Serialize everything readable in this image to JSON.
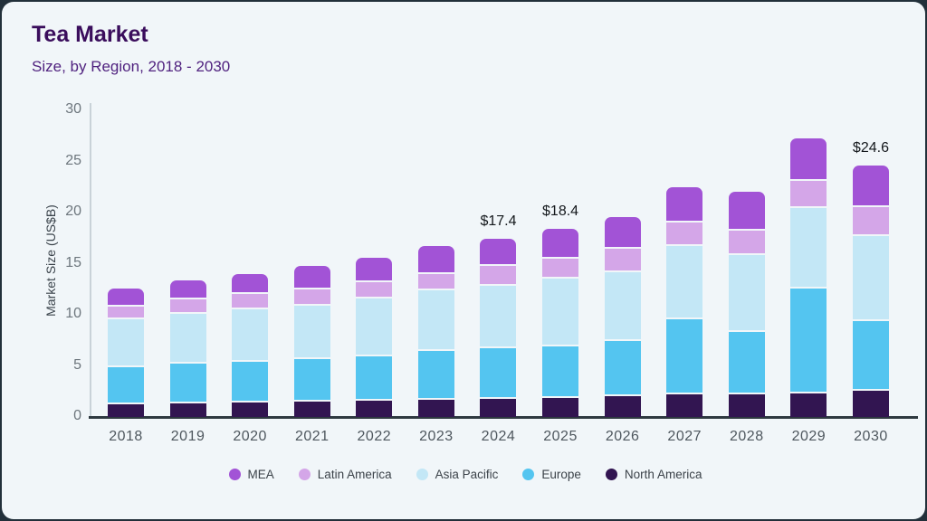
{
  "header": {
    "title": "Tea Market",
    "subtitle": "Size, by Region, 2018 - 2030"
  },
  "colors": {
    "card_bg": "#f1f6f9",
    "frame_bg": "#22303a",
    "title": "#3a0d5c",
    "subtitle": "#50227f",
    "axis_line": "#2e3940",
    "y_spine": "#c9d2d8"
  },
  "chart_data": {
    "type": "bar",
    "stacked": true,
    "title": "Tea Market",
    "subtitle": "Size, by Region, 2018 - 2030",
    "ylabel": "Market Size (US$B)",
    "xlabel": "",
    "ylim": [
      0,
      30
    ],
    "yticks": [
      0,
      5,
      10,
      15,
      20,
      25,
      30
    ],
    "grid": false,
    "legend_position": "bottom",
    "categories": [
      "2018",
      "2019",
      "2020",
      "2021",
      "2022",
      "2023",
      "2024",
      "2025",
      "2026",
      "2027",
      "2028",
      "2029",
      "2030"
    ],
    "series": [
      {
        "name": "North America",
        "color": "#321551",
        "values": [
          1.2,
          1.3,
          1.4,
          1.5,
          1.6,
          1.7,
          1.8,
          1.9,
          2.0,
          2.2,
          2.2,
          2.3,
          2.6
        ]
      },
      {
        "name": "Europe",
        "color": "#54c5f0",
        "values": [
          3.7,
          3.9,
          4.0,
          4.2,
          4.3,
          4.8,
          4.9,
          5.0,
          5.4,
          7.4,
          6.1,
          10.3,
          6.8
        ]
      },
      {
        "name": "Asia Pacific",
        "color": "#c3e7f6",
        "values": [
          4.7,
          4.9,
          5.1,
          5.2,
          5.7,
          5.9,
          6.1,
          6.6,
          6.8,
          7.1,
          7.5,
          7.8,
          8.3
        ]
      },
      {
        "name": "Latin America",
        "color": "#d4a6e8",
        "values": [
          1.2,
          1.4,
          1.5,
          1.6,
          1.6,
          1.6,
          2.0,
          2.0,
          2.3,
          2.3,
          2.4,
          2.7,
          2.8
        ]
      },
      {
        "name": "MEA",
        "color": "#a253d6",
        "values": [
          1.8,
          1.9,
          2.0,
          2.3,
          2.4,
          2.7,
          2.6,
          2.9,
          3.1,
          3.5,
          3.8,
          4.2,
          4.1
        ]
      }
    ],
    "totals": [
      12.6,
      13.4,
      14.0,
      14.8,
      15.6,
      16.7,
      17.4,
      18.4,
      19.6,
      22.5,
      22.0,
      27.3,
      24.6
    ],
    "annotations": [
      {
        "category": "2024",
        "text": "$17.4"
      },
      {
        "category": "2025",
        "text": "$18.4"
      },
      {
        "category": "2030",
        "text": "$24.6"
      }
    ],
    "legend": [
      {
        "label": "MEA",
        "color": "#a253d6"
      },
      {
        "label": "Latin America",
        "color": "#d4a6e8"
      },
      {
        "label": "Asia Pacific",
        "color": "#c3e7f6"
      },
      {
        "label": "Europe",
        "color": "#54c5f0"
      },
      {
        "label": "North America",
        "color": "#321551"
      }
    ]
  }
}
